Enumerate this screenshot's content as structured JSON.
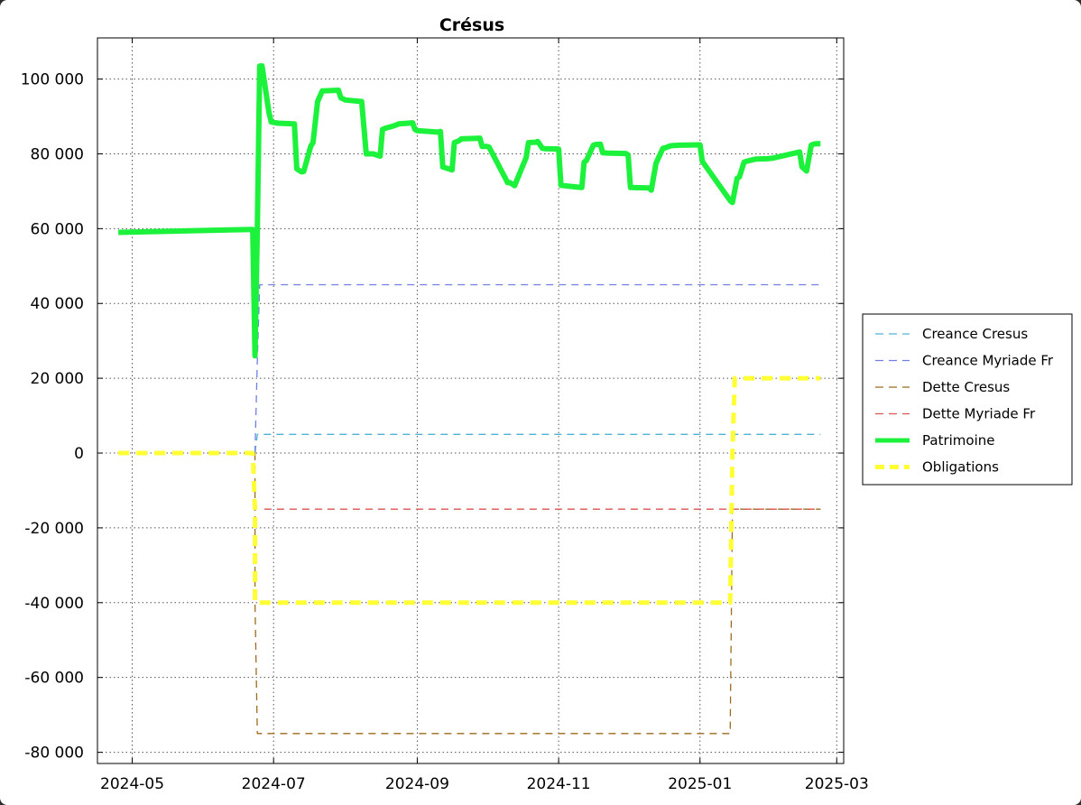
{
  "chart_data": {
    "type": "line",
    "title": "Crésus",
    "xlabel": "",
    "ylabel": "",
    "x_axis_type": "date",
    "xlim": [
      "2024-04-16",
      "2025-03-04"
    ],
    "ylim": [
      -83000,
      111000
    ],
    "x_ticks": [
      "2024-05-01",
      "2024-07-01",
      "2024-09-01",
      "2024-11-01",
      "2025-01-01",
      "2025-03-01"
    ],
    "x_tick_labels": [
      "2024-05",
      "2024-07",
      "2024-09",
      "2024-11",
      "2025-01",
      "2025-03"
    ],
    "y_ticks": [
      100000,
      80000,
      60000,
      40000,
      20000,
      0,
      -20000,
      -40000,
      -60000,
      -80000
    ],
    "y_tick_labels": [
      "100 000",
      "80 000",
      "60 000",
      "40 000",
      "20 000",
      "0",
      "-20 000",
      "-40 000",
      "-60 000",
      "-80 000"
    ],
    "grid": true,
    "legend_position": "right",
    "series": [
      {
        "name": "Creance Cresus",
        "color": "#4fb3d6",
        "style": "dashed",
        "x": [
          "2024-06-23",
          "2024-06-23",
          "2024-06-24",
          "2025-02-22"
        ],
        "y": [
          0,
          0,
          5000,
          5000
        ]
      },
      {
        "name": "Creance Myriade Fr",
        "color": "#6f7fe6",
        "style": "dashed",
        "x": [
          "2024-06-23",
          "2024-06-24",
          "2024-06-25",
          "2025-02-22"
        ],
        "y": [
          0,
          25000,
          45000,
          45000
        ]
      },
      {
        "name": "Dette Cresus",
        "color": "#9c6b1e",
        "style": "dashed",
        "x": [
          "2024-06-23",
          "2024-06-23",
          "2024-06-24",
          "2025-01-14",
          "2025-01-15",
          "2025-02-22"
        ],
        "y": [
          0,
          -40000,
          -75000,
          -75000,
          -15000,
          -15000
        ]
      },
      {
        "name": "Dette Myriade Fr",
        "color": "#d9534f",
        "style": "dashed",
        "x": [
          "2024-06-27",
          "2025-02-22"
        ],
        "y": [
          -15000,
          -15000
        ]
      },
      {
        "name": "Patrimoine",
        "color": "#1cf23c",
        "style": "solid-thick",
        "x": [
          "2024-04-25",
          "2024-06-22",
          "2024-06-23",
          "2024-06-24",
          "2024-06-25",
          "2024-06-26",
          "2024-06-29",
          "2024-06-30",
          "2024-07-03",
          "2024-07-10",
          "2024-07-11",
          "2024-07-13",
          "2024-07-14",
          "2024-07-17",
          "2024-07-18",
          "2024-07-20",
          "2024-07-22",
          "2024-07-29",
          "2024-07-30",
          "2024-08-01",
          "2024-08-08",
          "2024-08-10",
          "2024-08-13",
          "2024-08-16",
          "2024-08-17",
          "2024-08-18",
          "2024-08-22",
          "2024-08-24",
          "2024-08-30",
          "2024-08-31",
          "2024-09-01",
          "2024-09-10",
          "2024-09-11",
          "2024-09-12",
          "2024-09-13",
          "2024-09-16",
          "2024-09-17",
          "2024-09-19",
          "2024-09-20",
          "2024-09-28",
          "2024-09-29",
          "2024-10-01",
          "2024-10-02",
          "2024-10-10",
          "2024-10-11",
          "2024-10-13",
          "2024-10-18",
          "2024-10-19",
          "2024-10-22",
          "2024-10-23",
          "2024-10-25",
          "2024-10-26",
          "2024-11-01",
          "2024-11-02",
          "2024-11-03",
          "2024-11-11",
          "2024-11-12",
          "2024-11-13",
          "2024-11-16",
          "2024-11-17",
          "2024-11-19",
          "2024-11-20",
          "2024-11-22",
          "2024-11-30",
          "2024-12-01",
          "2024-12-02",
          "2024-12-10",
          "2024-12-11",
          "2024-12-13",
          "2024-12-16",
          "2024-12-17",
          "2024-12-19",
          "2024-12-20",
          "2024-12-23",
          "2025-01-01",
          "2025-01-02",
          "2025-01-14",
          "2025-01-15",
          "2025-01-17",
          "2025-01-18",
          "2025-01-20",
          "2025-01-21",
          "2025-01-23",
          "2025-01-25",
          "2025-01-30",
          "2025-02-01",
          "2025-02-13",
          "2025-02-14",
          "2025-02-15",
          "2025-02-16",
          "2025-02-18",
          "2025-02-19",
          "2025-02-20",
          "2025-02-22"
        ],
        "y": [
          59000,
          59800,
          26000,
          60000,
          103500,
          103500,
          91000,
          88500,
          88200,
          88000,
          76000,
          75200,
          75300,
          82000,
          83000,
          94000,
          96800,
          97000,
          95000,
          94400,
          94000,
          80000,
          80000,
          79400,
          86500,
          86800,
          87500,
          88000,
          88300,
          86500,
          86200,
          85800,
          86000,
          76500,
          76300,
          75700,
          83000,
          83500,
          84000,
          84200,
          82000,
          82000,
          81800,
          72300,
          72300,
          71500,
          79000,
          83000,
          83100,
          83300,
          81500,
          81400,
          81300,
          71600,
          71500,
          71000,
          77800,
          78200,
          82300,
          82500,
          82600,
          80300,
          80200,
          80100,
          79700,
          71000,
          70900,
          70300,
          77500,
          81500,
          81600,
          82100,
          82200,
          82300,
          82400,
          78000,
          67500,
          67000,
          73500,
          73800,
          77800,
          78000,
          78300,
          78600,
          78700,
          78800,
          80500,
          76500,
          76000,
          75400,
          82300,
          82600,
          82700,
          82700
        ]
      },
      {
        "name": "Obligations",
        "color": "#ffff33",
        "style": "dashed-thick",
        "x": [
          "2024-04-25",
          "2024-06-22",
          "2024-06-23",
          "2024-06-23",
          "2024-06-24",
          "2025-01-14",
          "2025-01-15",
          "2025-01-16",
          "2025-02-22"
        ],
        "y": [
          0,
          0,
          -15000,
          -40000,
          -40000,
          -40000,
          0,
          20000,
          20000
        ]
      }
    ]
  }
}
